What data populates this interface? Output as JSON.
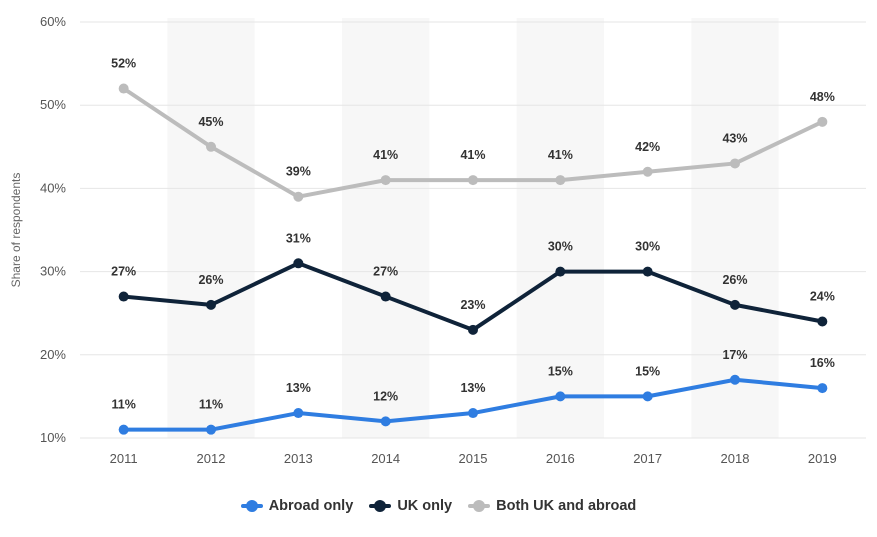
{
  "chart_data": {
    "type": "line",
    "x": [
      "2011",
      "2012",
      "2013",
      "2014",
      "2015",
      "2016",
      "2017",
      "2018",
      "2019"
    ],
    "ylabel": "Share of respondents",
    "ylim": [
      10,
      60
    ],
    "yticks": [
      10,
      20,
      30,
      40,
      50,
      60
    ],
    "ytick_labels": [
      "10%",
      "20%",
      "30%",
      "40%",
      "50%",
      "60%"
    ],
    "value_suffix": "%",
    "grid": "horizontal",
    "legend_position": "bottom",
    "series": [
      {
        "name": "Abroad only",
        "color": "#2f7de1",
        "values": [
          11,
          11,
          13,
          12,
          13,
          15,
          15,
          17,
          16
        ]
      },
      {
        "name": "UK only",
        "color": "#0f2339",
        "values": [
          27,
          26,
          31,
          27,
          23,
          30,
          30,
          26,
          24
        ]
      },
      {
        "name": "Both UK and abroad",
        "color": "#bcbcbc",
        "values": [
          52,
          45,
          39,
          41,
          41,
          41,
          42,
          43,
          48
        ]
      }
    ]
  }
}
